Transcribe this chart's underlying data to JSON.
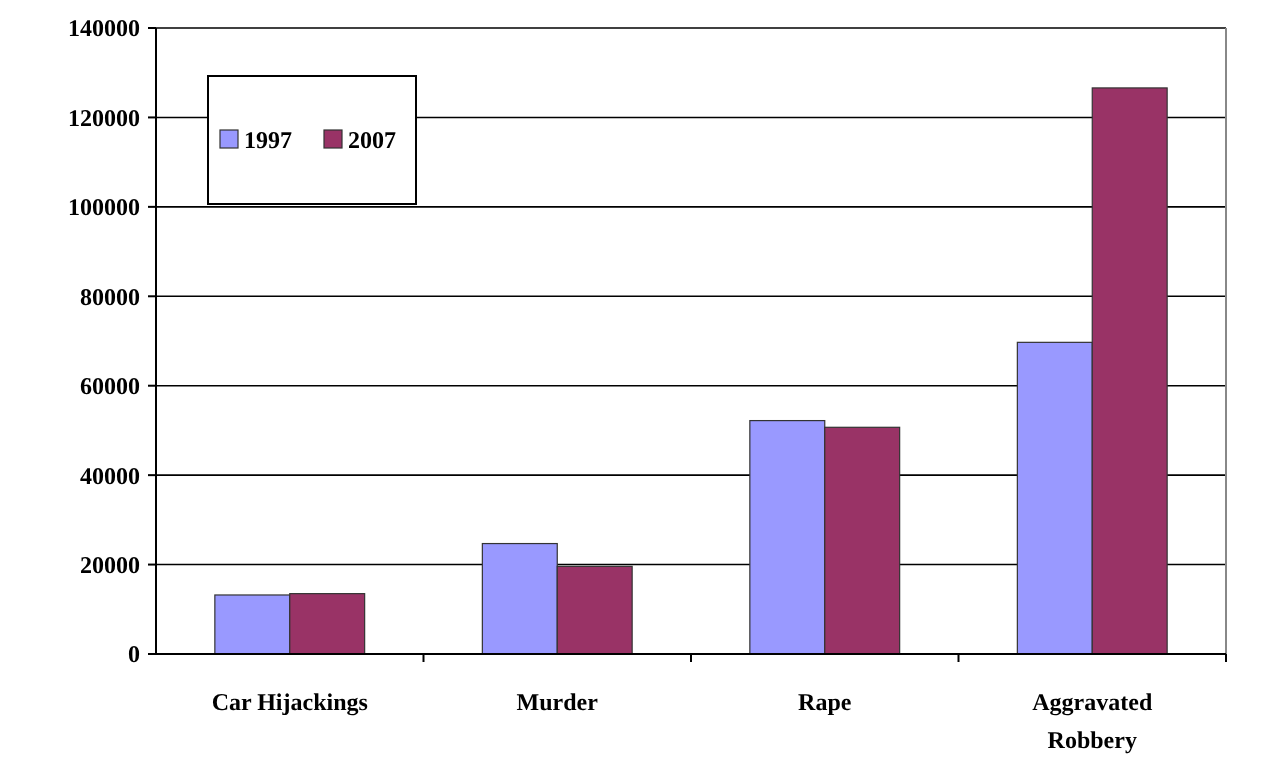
{
  "chart_data": {
    "type": "bar",
    "categories": [
      "Car Hijackings",
      "Murder",
      "Rape",
      "Aggravated Robbery"
    ],
    "series": [
      {
        "name": "1997",
        "color": "#9999ff",
        "values": [
          13200,
          24700,
          52200,
          69700
        ]
      },
      {
        "name": "2007",
        "color": "#993366",
        "values": [
          13500,
          19600,
          50700,
          126600
        ]
      }
    ],
    "ylim": [
      0,
      140000
    ],
    "yticks": [
      0,
      20000,
      40000,
      60000,
      80000,
      100000,
      120000,
      140000
    ],
    "grid": "y",
    "legend": "top left"
  }
}
